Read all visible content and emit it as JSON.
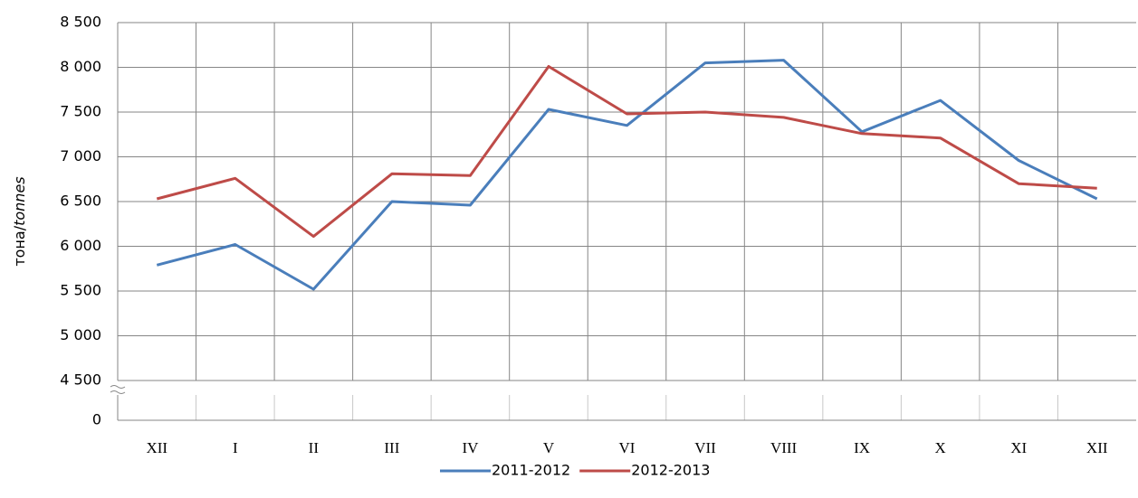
{
  "chart_data": {
    "type": "line",
    "y_label": [
      "тона/",
      "tonnes"
    ],
    "categories": [
      "XII",
      "I",
      "II",
      "III",
      "IV",
      "V",
      "VI",
      "VII",
      "VIII",
      "IX",
      "X",
      "XI",
      "XII"
    ],
    "series": [
      {
        "name": "2011-2012",
        "color": "#4a7ebb",
        "values": [
          5790,
          6020,
          5520,
          6500,
          6460,
          7530,
          7350,
          8050,
          8080,
          7280,
          7630,
          6960,
          6530
        ]
      },
      {
        "name": "2012-2013",
        "color": "#be4b48",
        "values": [
          6530,
          6760,
          6110,
          6810,
          6790,
          8010,
          7480,
          7500,
          7440,
          7260,
          7210,
          6700,
          6650
        ]
      }
    ],
    "ylim": [
      0,
      8500
    ],
    "ybreak": [
      0,
      4500
    ],
    "yticks": [
      0,
      {
        "value": 4500,
        "label": "4 500"
      },
      {
        "value": 5000,
        "label": "5 000"
      },
      {
        "value": 5500,
        "label": "5 500"
      },
      {
        "value": 6000,
        "label": "6 000"
      },
      {
        "value": 6500,
        "label": "6 500"
      },
      {
        "value": 7000,
        "label": "7 000"
      },
      {
        "value": 7500,
        "label": "7 500"
      },
      {
        "value": 8000,
        "label": "8 000"
      },
      {
        "value": 8500,
        "label": "8 500"
      }
    ],
    "grid": true,
    "legend": "bottom"
  }
}
